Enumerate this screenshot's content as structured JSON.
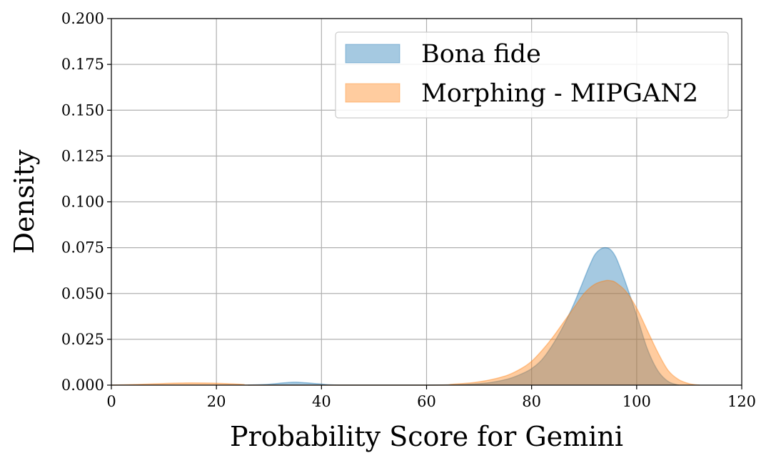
{
  "chart_data": {
    "type": "area",
    "title": "",
    "xlabel": "Probability Score for Gemini",
    "ylabel": "Density",
    "xlim": [
      0,
      120
    ],
    "ylim": [
      0,
      0.2
    ],
    "xticks": [
      0,
      20,
      40,
      60,
      80,
      100,
      120
    ],
    "xtick_labels": [
      "0",
      "20",
      "40",
      "60",
      "80",
      "100",
      "120"
    ],
    "yticks": [
      0.0,
      0.025,
      0.05,
      0.075,
      0.1,
      0.125,
      0.15,
      0.175,
      0.2
    ],
    "ytick_labels": [
      "0.000",
      "0.025",
      "0.050",
      "0.075",
      "0.100",
      "0.125",
      "0.150",
      "0.175",
      "0.200"
    ],
    "grid": true,
    "legend_position": "top-right",
    "series": [
      {
        "name": "Bona fide",
        "color": "#1f77b4",
        "x": [
          26,
          30,
          33,
          35,
          37,
          40,
          44,
          60,
          70,
          75,
          78,
          80,
          82,
          84,
          86,
          88,
          90,
          91,
          92,
          93,
          94,
          95,
          96,
          97,
          98,
          100,
          102,
          104,
          106,
          108
        ],
        "y": [
          0.0,
          0.0005,
          0.0013,
          0.0016,
          0.0013,
          0.0006,
          0.0,
          0.0,
          0.0008,
          0.003,
          0.006,
          0.009,
          0.014,
          0.022,
          0.032,
          0.044,
          0.058,
          0.065,
          0.071,
          0.074,
          0.075,
          0.074,
          0.07,
          0.063,
          0.055,
          0.038,
          0.02,
          0.008,
          0.002,
          0.0
        ]
      },
      {
        "name": "Morphing - MIPGAN2",
        "color": "#ff7f0e",
        "x": [
          0,
          5,
          10,
          15,
          20,
          25,
          28,
          60,
          65,
          70,
          75,
          78,
          80,
          82,
          84,
          86,
          88,
          90,
          92,
          94,
          95,
          96,
          98,
          100,
          102,
          104,
          106,
          108,
          110,
          112
        ],
        "y": [
          0.0,
          0.0004,
          0.0009,
          0.0012,
          0.001,
          0.0004,
          0.0,
          0.0,
          0.0005,
          0.0018,
          0.005,
          0.009,
          0.013,
          0.019,
          0.026,
          0.034,
          0.042,
          0.05,
          0.055,
          0.057,
          0.057,
          0.056,
          0.051,
          0.042,
          0.03,
          0.018,
          0.008,
          0.003,
          0.0008,
          0.0
        ]
      }
    ]
  }
}
